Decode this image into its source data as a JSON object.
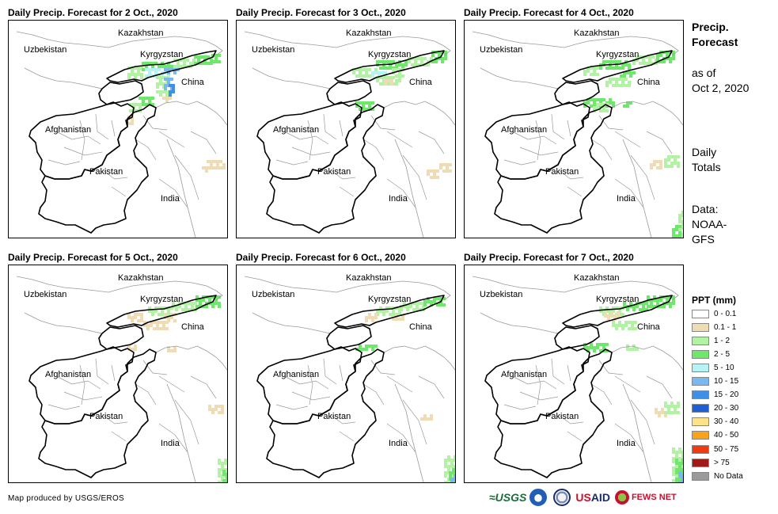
{
  "panels": [
    {
      "title": "Daily Precip. Forecast for 2 Oct., 2020",
      "day": 0
    },
    {
      "title": "Daily Precip. Forecast for 3 Oct., 2020",
      "day": 1
    },
    {
      "title": "Daily Precip. Forecast for 4 Oct., 2020",
      "day": 2
    },
    {
      "title": "Daily Precip. Forecast for 5 Oct., 2020",
      "day": 3
    },
    {
      "title": "Daily Precip. Forecast for 6 Oct., 2020",
      "day": 4
    },
    {
      "title": "Daily Precip. Forecast for 7 Oct., 2020",
      "day": 5
    }
  ],
  "map_labels": {
    "kazakhstan": "Kazakhstan",
    "uzbekistan": "Uzbekistan",
    "kyrgyzstan": "Kyrgyzstan",
    "china": "China",
    "afghanistan": "Afghanistan",
    "pakistan": "Pakistan",
    "india": "India"
  },
  "side": {
    "title_line1": "Precip.",
    "title_line2": "Forecast",
    "asof_line1": "as of",
    "asof_line2": "Oct 2, 2020",
    "totals_line1": "Daily",
    "totals_line2": "Totals",
    "data_line1": "Data:",
    "data_line2": "NOAA-",
    "data_line3": "GFS"
  },
  "legend": {
    "title": "PPT (mm)",
    "items": [
      {
        "label": "0 - 0.1",
        "color": "#ffffff"
      },
      {
        "label": "0.1 - 1",
        "color": "#efdcb5"
      },
      {
        "label": "1 - 2",
        "color": "#b2f2a3"
      },
      {
        "label": "2 - 5",
        "color": "#6ee86a"
      },
      {
        "label": "5 - 10",
        "color": "#b7f2f4"
      },
      {
        "label": "10 - 15",
        "color": "#79b8f0"
      },
      {
        "label": "15 - 20",
        "color": "#3f8fe6"
      },
      {
        "label": "20 - 30",
        "color": "#1f5fd6"
      },
      {
        "label": "30 - 40",
        "color": "#fce38a"
      },
      {
        "label": "40 - 50",
        "color": "#f9a21a"
      },
      {
        "label": "50 - 75",
        "color": "#f03b12"
      },
      {
        "label": "> 75",
        "color": "#a11a1a"
      },
      {
        "label": "No Data",
        "color": "#9b9b9b"
      }
    ]
  },
  "footer": "Map produced by USGS/EROS",
  "logos": {
    "usgs": "≈USGS",
    "usaid_prefix": "US",
    "usaid_suffix": "AID",
    "fews": "FEWS NET"
  }
}
